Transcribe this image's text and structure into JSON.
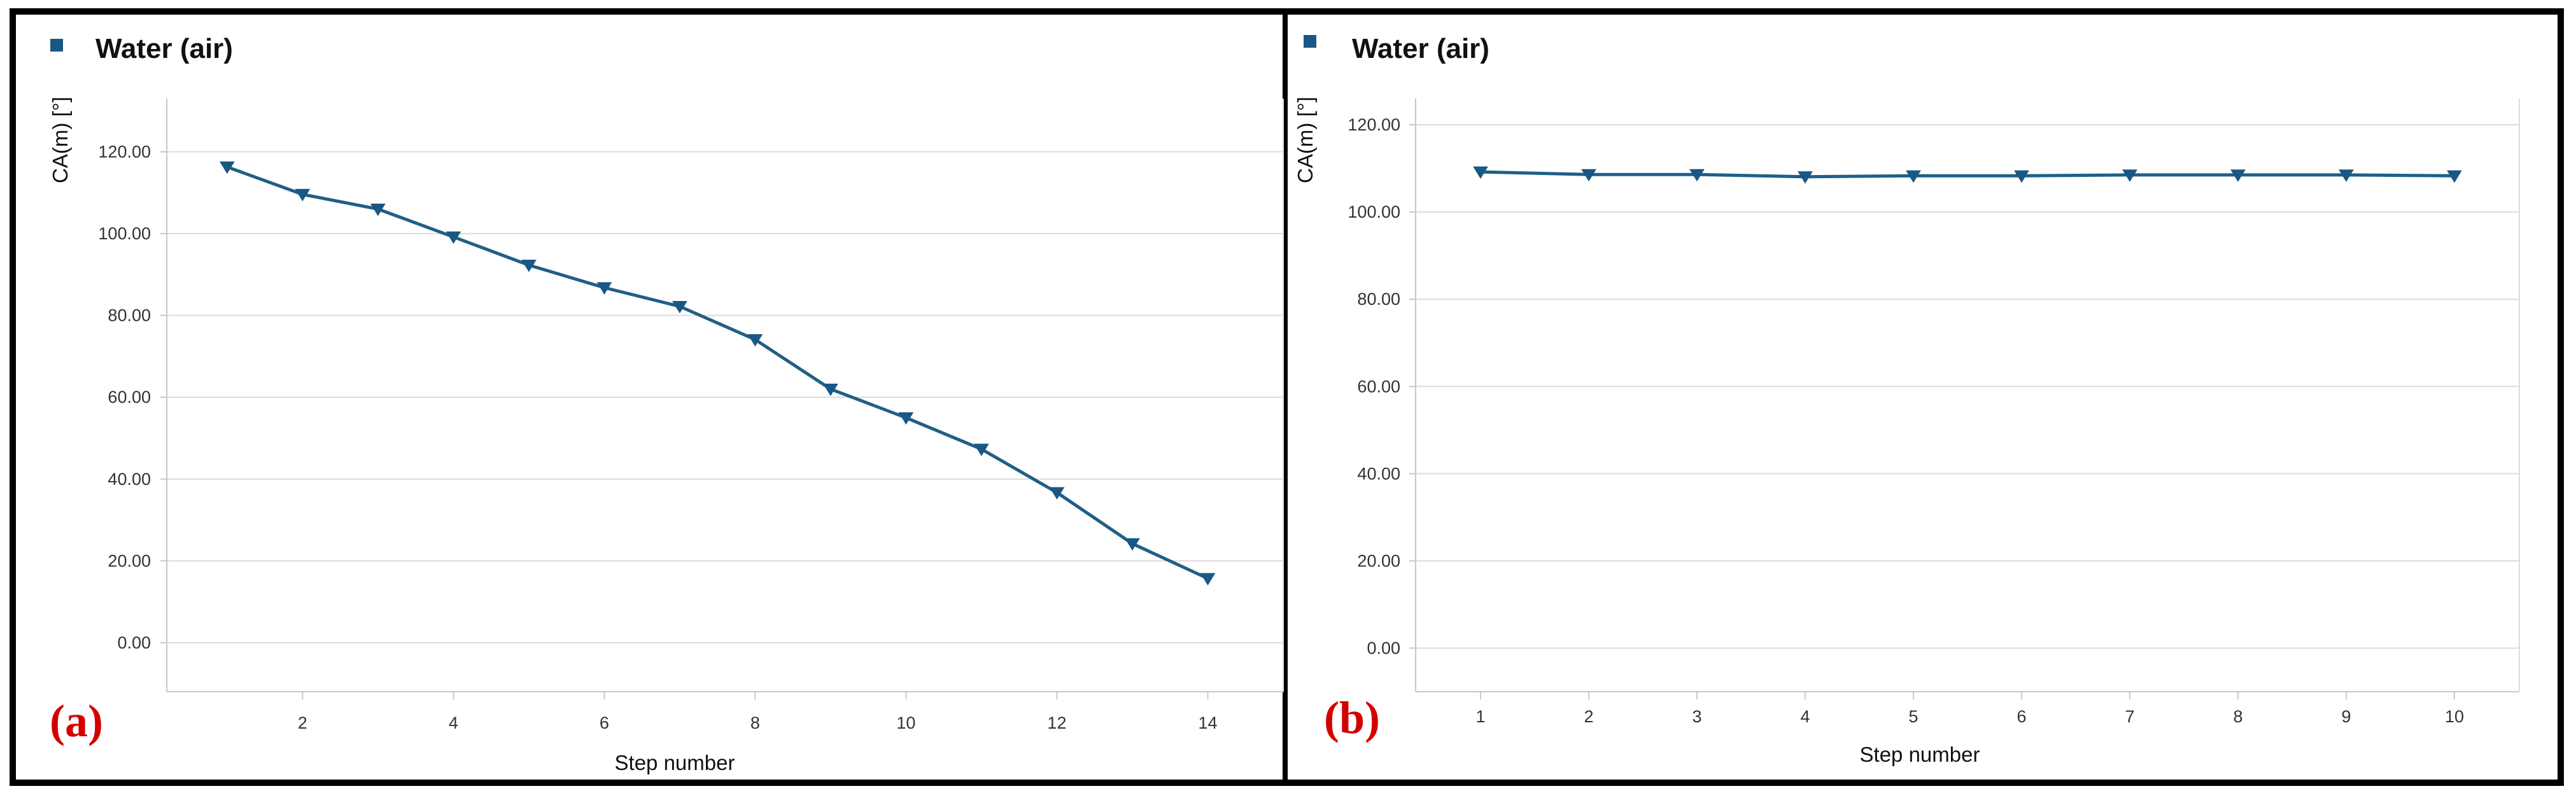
{
  "theme": {
    "series_color": "#1f5f86",
    "legend_marker_color": "#1a5784",
    "grid_color": "#dcdcdc",
    "axis_color": "#c8c8c8",
    "frame_color": "#000000",
    "panel_label_color": "#d40000"
  },
  "chart_data": [
    {
      "type": "line",
      "panel_label": "(a)",
      "legend": "Water (air)",
      "title": "",
      "xlabel": "Step number",
      "ylabel": "CA(m) [°]",
      "xlim": [
        0.2,
        15
      ],
      "ylim": [
        -12,
        133
      ],
      "x_ticks": [
        "2",
        "4",
        "6",
        "8",
        "10",
        "12",
        "14"
      ],
      "y_ticks": [
        "0.00",
        "20.00",
        "40.00",
        "60.00",
        "80.00",
        "100.00",
        "120.00"
      ],
      "grid": true,
      "series": [
        {
          "name": "Water (air)",
          "marker": "triangle-down",
          "x": [
            1,
            2,
            3,
            4,
            5,
            6,
            7,
            8,
            9,
            10,
            11,
            12,
            13,
            14
          ],
          "y": [
            116.3,
            109.6,
            106.0,
            99.2,
            92.3,
            86.8,
            82.2,
            74.1,
            62.0,
            55.0,
            47.3,
            36.7,
            24.2,
            15.7
          ]
        }
      ]
    },
    {
      "type": "line",
      "panel_label": "(b)",
      "legend": "Water (air)",
      "title": "",
      "xlabel": "Step number",
      "ylabel": "CA(m) [°]",
      "xlim": [
        0.4,
        10.6
      ],
      "ylim": [
        -10,
        126
      ],
      "x_ticks": [
        "1",
        "2",
        "3",
        "4",
        "5",
        "6",
        "7",
        "8",
        "9",
        "10"
      ],
      "y_ticks": [
        "0.00",
        "20.00",
        "40.00",
        "60.00",
        "80.00",
        "100.00",
        "120.00"
      ],
      "grid": true,
      "series": [
        {
          "name": "Water (air)",
          "marker": "triangle-down",
          "x": [
            1,
            2,
            3,
            4,
            5,
            6,
            7,
            8,
            9,
            10
          ],
          "y": [
            109.2,
            108.6,
            108.6,
            108.1,
            108.3,
            108.3,
            108.5,
            108.5,
            108.5,
            108.3
          ]
        }
      ]
    }
  ]
}
